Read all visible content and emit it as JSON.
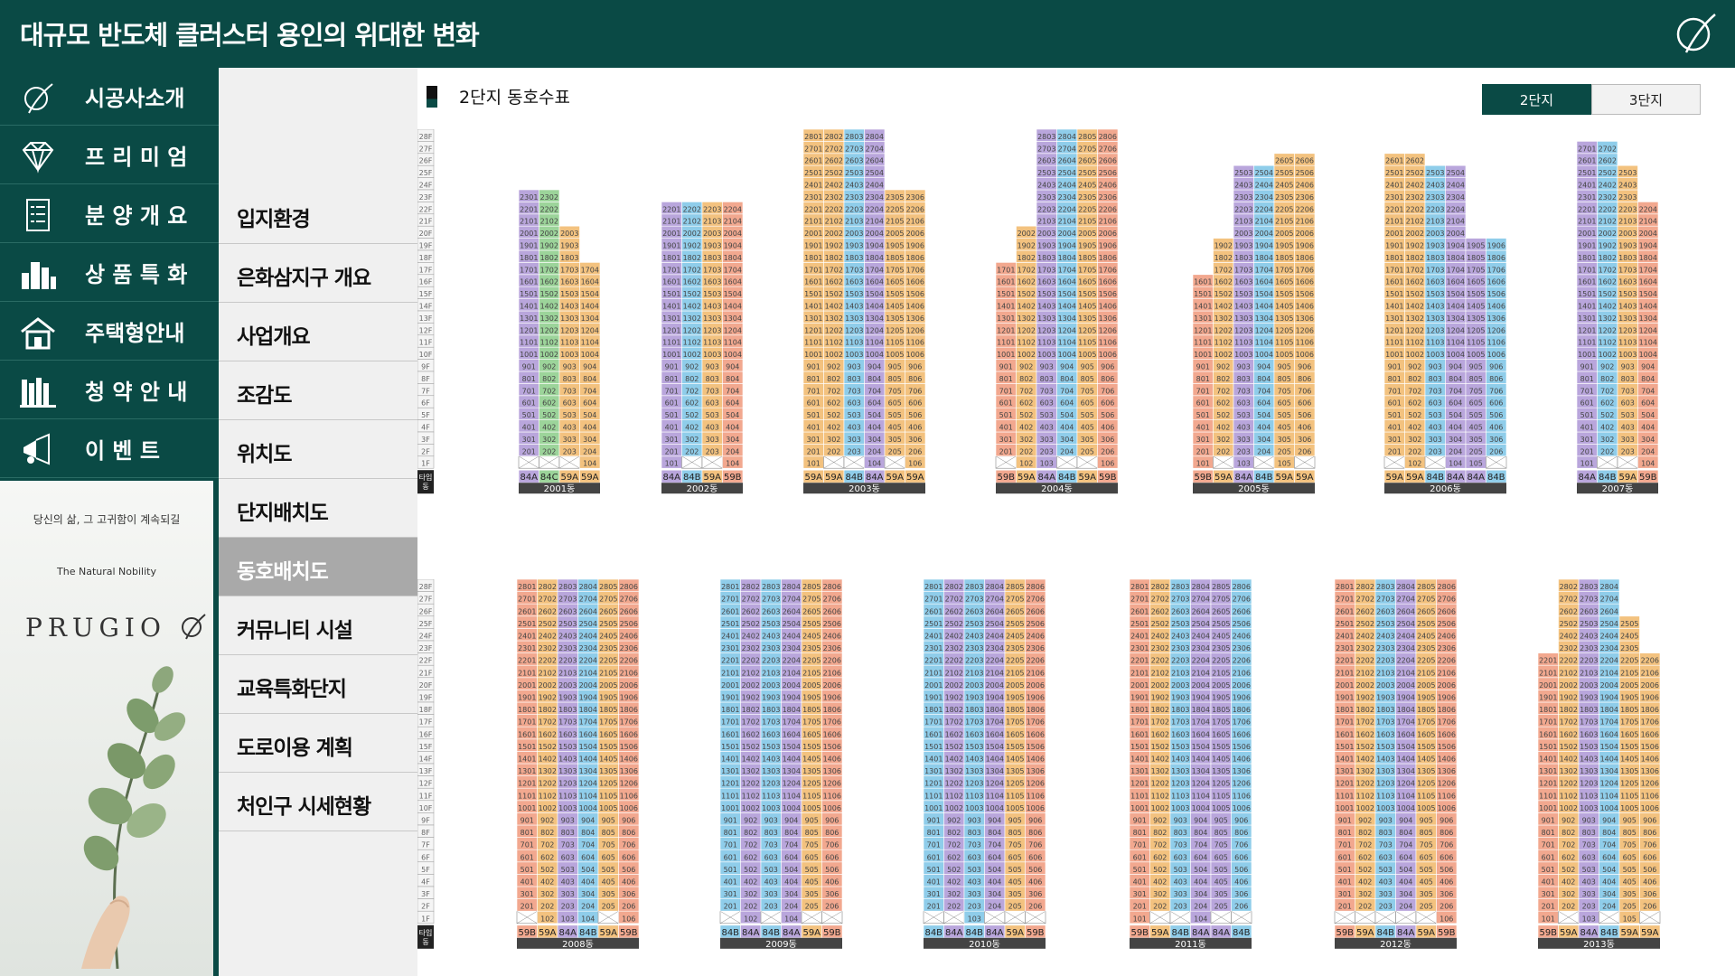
{
  "header": {
    "title": "대규모 반도체 클러스터 용인의 위대한 변화"
  },
  "nav": {
    "items": [
      {
        "label": "시공사소개",
        "icon": "leaf-logo-icon"
      },
      {
        "label": "프 리 미 엄",
        "icon": "diamond-icon"
      },
      {
        "label": "분 양 개 요",
        "icon": "document-list-icon"
      },
      {
        "label": "상 품 특 화",
        "icon": "buildings-icon"
      },
      {
        "label": "주택형안내",
        "icon": "house-icon"
      },
      {
        "label": "청 약 안 내",
        "icon": "books-icon"
      },
      {
        "label": "이   벤   트",
        "icon": "megaphone-icon"
      }
    ]
  },
  "brand": {
    "slogan": "당신의 삶, 그 고귀함이 계속되길",
    "tagline": "The Natural Nobility",
    "name": "PRUGIO"
  },
  "subnav": {
    "items": [
      "입지환경",
      "은화삼지구 개요",
      "사업개요",
      "조감도",
      "위치도",
      "단지배치도",
      "동호배치도",
      "커뮤니티 시설",
      "교육특화단지",
      "도로이용 계획",
      "처인구 시세현황"
    ],
    "active_index": 6
  },
  "main": {
    "title": "2단지 동호수표",
    "tabs": [
      "2단지",
      "3단지"
    ],
    "floor_labels": [
      "28F",
      "27F",
      "26F",
      "25F",
      "24F",
      "23F",
      "22F",
      "21F",
      "20F",
      "19F",
      "18F",
      "17F",
      "16F",
      "15F",
      "14F",
      "13F",
      "12F",
      "11F",
      "10F",
      "9F",
      "8F",
      "7F",
      "6F",
      "5F",
      "4F",
      "3F",
      "2F",
      "1F"
    ],
    "type_label": "타입\n동"
  },
  "colors": {
    "59A": "#f3c27f",
    "59B": "#f2a88f",
    "84A": "#b9a6dc",
    "84B": "#8fcdea",
    "84C": "#9cd49a",
    "header": "#0a4a45"
  },
  "buildings_top": [
    {
      "name": "2001동",
      "types": [
        "84A",
        "84C",
        "59A",
        "59A"
      ],
      "tops": [
        23,
        23,
        20,
        17
      ],
      "empty1F": [
        true,
        true,
        true,
        false
      ]
    },
    {
      "name": "2002동",
      "types": [
        "84A",
        "84B",
        "59A",
        "59B"
      ],
      "tops": [
        22,
        22,
        22,
        22
      ],
      "empty1F": [
        false,
        true,
        true,
        false
      ]
    },
    {
      "name": "2003동",
      "types": [
        "59A",
        "59A",
        "84B",
        "84A",
        "59A",
        "59A"
      ],
      "tops": [
        28,
        28,
        28,
        28,
        23,
        23
      ],
      "empty1F": [
        false,
        true,
        true,
        false,
        true,
        false
      ]
    },
    {
      "name": "2004동",
      "types": [
        "59B",
        "59A",
        "84A",
        "84B",
        "59A",
        "59B"
      ],
      "tops": [
        17,
        20,
        28,
        28,
        28,
        28
      ],
      "empty1F": [
        true,
        false,
        false,
        true,
        true,
        false
      ]
    },
    {
      "name": "2005동",
      "types": [
        "59B",
        "59A",
        "84A",
        "84B",
        "59A",
        "59A"
      ],
      "tops": [
        16,
        19,
        25,
        25,
        26,
        26
      ],
      "empty1F": [
        false,
        true,
        false,
        true,
        false,
        true
      ]
    },
    {
      "name": "2006동",
      "types": [
        "59A",
        "59A",
        "84B",
        "84A",
        "84A",
        "84B"
      ],
      "tops": [
        26,
        26,
        25,
        25,
        19,
        19
      ],
      "empty1F": [
        true,
        false,
        true,
        false,
        false,
        true
      ]
    },
    {
      "name": "2007동",
      "types": [
        "84A",
        "84B",
        "59A",
        "59B"
      ],
      "tops": [
        27,
        27,
        25,
        22
      ],
      "empty1F": [
        false,
        true,
        true,
        false
      ]
    }
  ],
  "buildings_bottom": [
    {
      "name": "2008동",
      "types": [
        "59B",
        "59A",
        "84A",
        "84B",
        "59A",
        "59B"
      ],
      "tops": [
        28,
        28,
        28,
        28,
        28,
        28
      ],
      "empty1F": [
        true,
        false,
        false,
        false,
        true,
        false
      ]
    },
    {
      "name": "2009동",
      "types": [
        "84B",
        "84A",
        "84B",
        "84A",
        "59A",
        "59B"
      ],
      "tops": [
        28,
        28,
        28,
        28,
        28,
        28
      ],
      "empty1F": [
        true,
        false,
        true,
        false,
        true,
        true
      ]
    },
    {
      "name": "2010동",
      "types": [
        "84B",
        "84A",
        "84B",
        "84A",
        "59A",
        "59B"
      ],
      "tops": [
        28,
        28,
        28,
        28,
        28,
        28
      ],
      "empty1F": [
        true,
        true,
        false,
        true,
        true,
        true
      ]
    },
    {
      "name": "2011동",
      "types": [
        "59B",
        "59A",
        "84B",
        "84A",
        "84A",
        "84B"
      ],
      "tops": [
        28,
        28,
        28,
        28,
        28,
        28
      ],
      "empty1F": [
        false,
        true,
        true,
        false,
        true,
        true
      ]
    },
    {
      "name": "2012동",
      "types": [
        "59B",
        "59A",
        "84B",
        "84A",
        "59A",
        "59B"
      ],
      "tops": [
        28,
        28,
        28,
        28,
        28,
        28
      ],
      "empty1F": [
        true,
        true,
        true,
        true,
        true,
        false
      ]
    },
    {
      "name": "2013동",
      "types": [
        "59B",
        "59A",
        "84A",
        "84B",
        "59A",
        "59A"
      ],
      "tops": [
        22,
        28,
        28,
        28,
        25,
        22
      ],
      "empty1F": [
        false,
        true,
        false,
        true,
        false,
        true
      ]
    }
  ]
}
